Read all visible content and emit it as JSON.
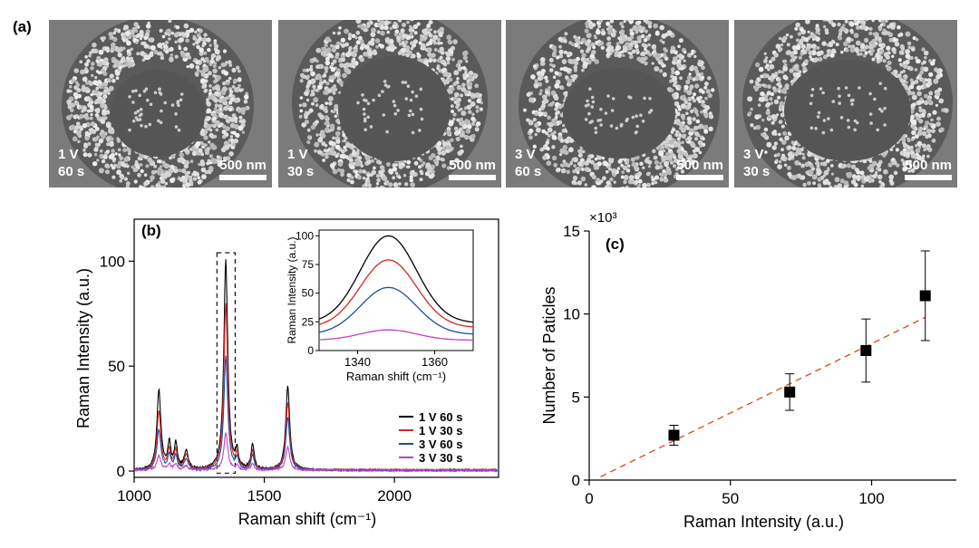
{
  "panel_a": {
    "label": "(a)",
    "images": [
      {
        "voltage": "1 V",
        "time": "60 s",
        "scale": "500 nm"
      },
      {
        "voltage": "1 V",
        "time": "30 s",
        "scale": "500 nm"
      },
      {
        "voltage": "3 V",
        "time": "60 s",
        "scale": "500 nm"
      },
      {
        "voltage": "3 V",
        "time": "30 s",
        "scale": "500 nm"
      }
    ]
  },
  "chart_data": [
    {
      "type": "line",
      "panel_label": "(b)",
      "xlabel": "Raman shift (cm⁻¹)",
      "ylabel": "Raman Intensity (a.u.)",
      "xlim": [
        1000,
        2400
      ],
      "ylim": [
        -3,
        120
      ],
      "xticks": [
        1000,
        1500,
        2000
      ],
      "yticks": [
        0,
        50,
        100
      ],
      "legend_position": "lower-right",
      "series": [
        {
          "name": "1 V 60 s",
          "color": "#000000",
          "peaks": [
            [
              1095,
              38
            ],
            [
              1135,
              12
            ],
            [
              1160,
              12
            ],
            [
              1200,
              9
            ],
            [
              1352,
              100
            ],
            [
              1395,
              8
            ],
            [
              1455,
              12
            ],
            [
              1590,
              40
            ]
          ]
        },
        {
          "name": "1 V 30 s",
          "color": "#d62728",
          "peaks": [
            [
              1095,
              28
            ],
            [
              1135,
              9
            ],
            [
              1160,
              9
            ],
            [
              1200,
              7
            ],
            [
              1352,
              79
            ],
            [
              1395,
              6
            ],
            [
              1455,
              9
            ],
            [
              1590,
              32
            ]
          ]
        },
        {
          "name": "3 V 60 s",
          "color": "#1f4e9c",
          "peaks": [
            [
              1095,
              19
            ],
            [
              1135,
              7
            ],
            [
              1160,
              7
            ],
            [
              1200,
              5
            ],
            [
              1352,
              54
            ],
            [
              1395,
              5
            ],
            [
              1455,
              7
            ],
            [
              1590,
              25
            ]
          ]
        },
        {
          "name": "3 V 30 s",
          "color": "#c040c8",
          "peaks": [
            [
              1095,
              7
            ],
            [
              1135,
              3
            ],
            [
              1160,
              3
            ],
            [
              1200,
              2
            ],
            [
              1352,
              18
            ],
            [
              1395,
              2
            ],
            [
              1455,
              3
            ],
            [
              1590,
              11
            ]
          ]
        }
      ],
      "inset": {
        "xlabel": "Raman shift (cm⁻¹)",
        "ylabel": "Raman Intensity (a.u.)",
        "xlim": [
          1330,
          1370
        ],
        "ylim": [
          0,
          105
        ],
        "xticks": [
          1340,
          1360
        ],
        "yticks": [
          0,
          25,
          50,
          75,
          100
        ],
        "peak_center": 1348,
        "peak_heights": [
          100,
          79,
          55,
          18
        ],
        "edge_values": [
          24,
          20,
          14,
          9
        ]
      }
    },
    {
      "type": "scatter",
      "panel_label": "(c)",
      "xlabel": "Raman Intensity (a.u.)",
      "ylabel": "Number of Paticles",
      "multiplier": "×10³",
      "xlim": [
        0,
        130
      ],
      "ylim": [
        0,
        15
      ],
      "xticks": [
        0,
        50,
        100
      ],
      "yticks": [
        0,
        5,
        10,
        15
      ],
      "points": [
        {
          "x": 30,
          "y": 2.7,
          "err": 0.6
        },
        {
          "x": 71,
          "y": 5.3,
          "err": 1.1
        },
        {
          "x": 98,
          "y": 7.8,
          "err": 1.9
        },
        {
          "x": 119,
          "y": 11.1,
          "err": 2.7
        }
      ],
      "fit_line": {
        "x": [
          4,
          119
        ],
        "y": [
          0.2,
          9.8
        ],
        "color": "#d9532c"
      }
    }
  ]
}
